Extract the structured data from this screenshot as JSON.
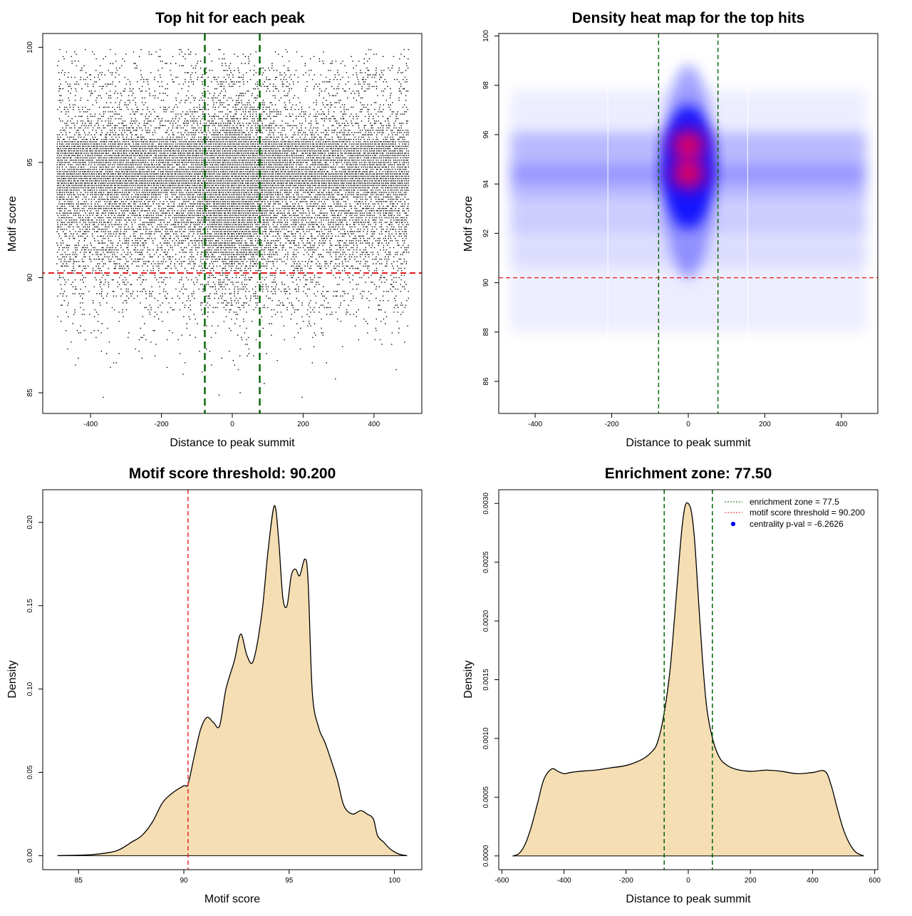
{
  "chart_data": [
    {
      "type": "scatter",
      "title": "Top hit for each peak",
      "xlabel": "Distance to peak summit",
      "ylabel": "Motif score",
      "xlim": [
        -535,
        535
      ],
      "ylim": [
        84.1,
        100.6
      ],
      "xticks": [
        -400,
        -200,
        0,
        200,
        400
      ],
      "yticks": [
        85,
        90,
        95,
        100
      ],
      "xtick_labels": [
        "-400",
        "-200",
        "0",
        "200",
        "400"
      ],
      "ytick_labels": [
        "85",
        "90",
        "95",
        "100"
      ],
      "point_x_range": [
        -495,
        495
      ],
      "point_density_peak": 0,
      "score_distribution_modes": [
        91.0,
        92.7,
        94.3,
        95.5,
        95.9
      ],
      "threshold_y": 90.2,
      "enrichment_lines_x": [
        -77.5,
        77.5
      ],
      "colors": {
        "points": "#000000",
        "threshold": "#e31a1c",
        "zone": "#006400"
      }
    },
    {
      "type": "heatmap",
      "title": "Density heat map for the top hits",
      "xlabel": "Distance to peak summit",
      "ylabel": "Motif score",
      "xlim": [
        -495,
        495
      ],
      "ylim": [
        84.7,
        100.1
      ],
      "xticks": [
        -400,
        -200,
        0,
        200,
        400
      ],
      "yticks": [
        86,
        88,
        90,
        92,
        94,
        96,
        98,
        100
      ],
      "xtick_labels": [
        "-400",
        "-200",
        "0",
        "200",
        "400"
      ],
      "ytick_labels": [
        "86",
        "88",
        "90",
        "92",
        "94",
        "96",
        "98",
        "100"
      ],
      "hot_spots": [
        {
          "x": 0,
          "y": 95.6
        },
        {
          "x": 0,
          "y": 94.4
        }
      ],
      "bands_y": [
        92.6,
        94.3,
        95.6
      ],
      "threshold_y": 90.2,
      "enrichment_lines_x": [
        -77.5,
        77.5
      ],
      "colors": {
        "low": "#ffffff",
        "mid": "#0000ff",
        "high": "#ff0000",
        "threshold": "#e31a1c",
        "zone": "#006400"
      }
    },
    {
      "type": "area",
      "title": "Motif score threshold: 90.200",
      "xlabel": "Motif score",
      "ylabel": "Density",
      "xlim": [
        83.3,
        101.3
      ],
      "ylim": [
        -0.0084,
        0.2196
      ],
      "xticks": [
        85,
        90,
        95,
        100
      ],
      "yticks": [
        0.0,
        0.05,
        0.1,
        0.15,
        0.2
      ],
      "xtick_labels": [
        "85",
        "90",
        "95",
        "100"
      ],
      "ytick_labels": [
        "0.00",
        "0.05",
        "0.10",
        "0.15",
        "0.20"
      ],
      "x": [
        84.0,
        85.5,
        86.5,
        87.0,
        87.5,
        88.0,
        88.5,
        89.0,
        89.5,
        90.0,
        90.2,
        90.5,
        90.8,
        91.1,
        91.4,
        91.7,
        92.0,
        92.4,
        92.7,
        93.0,
        93.3,
        93.7,
        94.0,
        94.3,
        94.5,
        94.7,
        94.9,
        95.1,
        95.3,
        95.5,
        95.75,
        95.9,
        96.1,
        96.4,
        96.7,
        97.0,
        97.3,
        97.6,
        98.0,
        98.4,
        98.7,
        99.0,
        99.2,
        99.5,
        99.8,
        100.2,
        100.6
      ],
      "y": [
        0.0,
        0.0005,
        0.002,
        0.004,
        0.008,
        0.012,
        0.02,
        0.032,
        0.038,
        0.042,
        0.043,
        0.06,
        0.076,
        0.083,
        0.08,
        0.078,
        0.1,
        0.117,
        0.133,
        0.12,
        0.117,
        0.145,
        0.183,
        0.21,
        0.19,
        0.155,
        0.15,
        0.168,
        0.172,
        0.168,
        0.178,
        0.165,
        0.098,
        0.077,
        0.068,
        0.057,
        0.045,
        0.03,
        0.025,
        0.027,
        0.025,
        0.022,
        0.012,
        0.008,
        0.004,
        0.001,
        0.0
      ],
      "threshold_x": 90.2,
      "colors": {
        "fill": "#f5deb3",
        "line": "#000000",
        "threshold": "#e31a1c"
      }
    },
    {
      "type": "area",
      "title": "Enrichment zone: 77.50",
      "xlabel": "Distance to peak summit",
      "ylabel": "Density",
      "xlim": [
        -610,
        610
      ],
      "ylim": [
        -0.000117,
        0.003117
      ],
      "xticks": [
        -600,
        -400,
        -200,
        0,
        200,
        400,
        600
      ],
      "yticks": [
        0.0,
        0.0005,
        0.001,
        0.0015,
        0.002,
        0.0025,
        0.003
      ],
      "xtick_labels": [
        "-600",
        "-400",
        "-200",
        "0",
        "200",
        "400",
        "600"
      ],
      "ytick_labels": [
        "0.0000",
        "0.0005",
        "0.0010",
        "0.0015",
        "0.0020",
        "0.0025",
        "0.0030"
      ],
      "x": [
        -565,
        -545,
        -525,
        -505,
        -485,
        -465,
        -440,
        -420,
        -400,
        -380,
        -350,
        -300,
        -250,
        -200,
        -150,
        -120,
        -100,
        -80,
        -60,
        -45,
        -30,
        -20,
        -10,
        0,
        10,
        20,
        30,
        45,
        60,
        80,
        100,
        120,
        150,
        200,
        250,
        300,
        350,
        400,
        440,
        460,
        480,
        500,
        520,
        540,
        565
      ],
      "y": [
        0.0,
        2e-05,
        0.0001,
        0.00025,
        0.00045,
        0.00065,
        0.00074,
        0.00072,
        0.0007,
        0.00071,
        0.00072,
        0.00073,
        0.00075,
        0.00077,
        0.00082,
        0.00088,
        0.00096,
        0.00118,
        0.00155,
        0.002,
        0.0025,
        0.0028,
        0.00298,
        0.003,
        0.00293,
        0.0027,
        0.0023,
        0.0017,
        0.00125,
        0.00098,
        0.00084,
        0.00078,
        0.00074,
        0.00072,
        0.00073,
        0.00072,
        0.0007,
        0.00071,
        0.00072,
        0.0006,
        0.0004,
        0.00022,
        0.0001,
        3e-05,
        0.0
      ],
      "enrichment_lines_x": [
        -77.5,
        77.5
      ],
      "legend_position": "top-right",
      "legend": [
        {
          "label": "enrichment zone = 77.5",
          "color": "#006400",
          "kind": "dotted-line"
        },
        {
          "label": "motif score threshold = 90.200",
          "color": "#e31a1c",
          "kind": "dotted-line"
        },
        {
          "label": "centrality p-val = -6.2626",
          "color": "#0000ff",
          "kind": "point"
        }
      ],
      "colors": {
        "fill": "#f5deb3",
        "line": "#000000",
        "zone": "#006400"
      }
    }
  ]
}
